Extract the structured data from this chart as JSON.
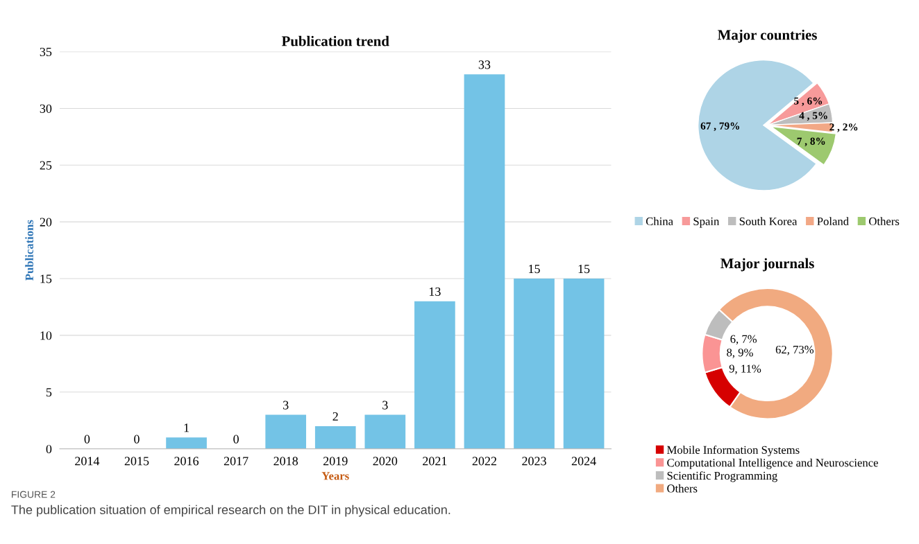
{
  "chart_data": [
    {
      "type": "bar",
      "title": "Publication trend",
      "xlabel": "Years",
      "ylabel": "Publications",
      "categories": [
        "2014",
        "2015",
        "2016",
        "2017",
        "2018",
        "2019",
        "2020",
        "2021",
        "2022",
        "2023",
        "2024"
      ],
      "values": [
        0,
        0,
        1,
        0,
        3,
        2,
        3,
        13,
        33,
        15,
        15
      ],
      "color": "#73c3e6",
      "ylim": [
        0,
        35
      ],
      "yticks": [
        0,
        5,
        10,
        15,
        20,
        25,
        30,
        35
      ],
      "grid": "y",
      "data_labels": true,
      "annotations": [
        "FIGURE 2",
        "The publication situation of empirical research on the DIT in physical education."
      ]
    },
    {
      "type": "pie",
      "title": "Major countries",
      "categories": [
        "China",
        "Spain",
        "South Korea",
        "Poland",
        "Others"
      ],
      "values": [
        67,
        5,
        4,
        2,
        7
      ],
      "colors": [
        "#aed4e6",
        "#f79a9a",
        "#bdbdbd",
        "#f2a886",
        "#9dc96f"
      ],
      "value_labels": [
        "67 , 79%",
        "5 , 6%",
        "4 , 5%",
        "2 , 2%",
        "7 , 8%"
      ],
      "legend": "bottom"
    },
    {
      "type": "donut",
      "title": "Major journals",
      "categories": [
        "Mobile Information Systems",
        "Computational Intelligence and Neuroscience",
        "Scientific Programming",
        "Others"
      ],
      "values": [
        9,
        8,
        6,
        62
      ],
      "colors": [
        "#d60000",
        "#fa9494",
        "#bdbdbd",
        "#f1aa80"
      ],
      "value_labels": [
        "9, 11%",
        "8, 9%",
        "6, 7%",
        "62, 73%"
      ],
      "legend": "bottom"
    }
  ]
}
